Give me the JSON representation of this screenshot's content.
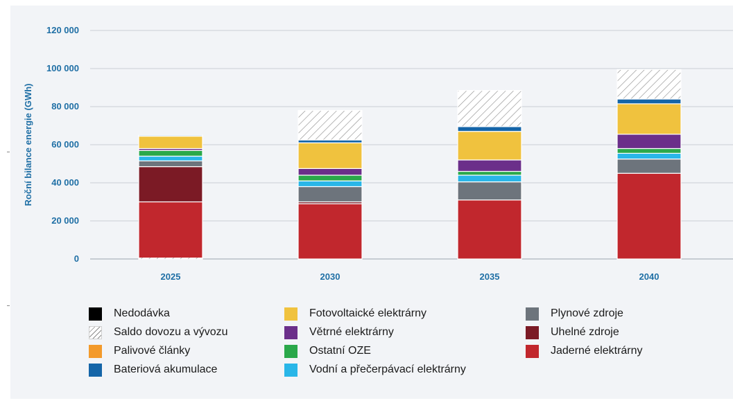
{
  "chart_data": {
    "type": "bar",
    "stacked": true,
    "title": "",
    "xlabel": "",
    "ylabel": "Roční bilance energie (GWh)",
    "ylim": [
      0,
      120000
    ],
    "yticks": [
      0,
      20000,
      40000,
      60000,
      80000,
      100000,
      120000
    ],
    "ytick_labels": [
      "0",
      "20 000",
      "40 000",
      "60 000",
      "80 000",
      "100 000",
      "120 000"
    ],
    "grid": true,
    "legend_position": "bottom",
    "categories": [
      "2025",
      "2030",
      "2035",
      "2040"
    ],
    "series": [
      {
        "name": "Jaderné elektrárny",
        "color": "#c1272d",
        "values": [
          30000,
          29000,
          31000,
          45000
        ]
      },
      {
        "name": "Uhelné zdroje",
        "color": "#7b1a25",
        "values": [
          18500,
          1000,
          0,
          0
        ]
      },
      {
        "name": "Plynové zdroje",
        "color": "#6d747c",
        "values": [
          3000,
          8000,
          9500,
          7500
        ]
      },
      {
        "name": "Vodní a přečerpávací elektrárny",
        "color": "#29b6e8",
        "values": [
          2500,
          3000,
          3500,
          3000
        ]
      },
      {
        "name": "Ostatní OZE",
        "color": "#2aa84a",
        "values": [
          3000,
          3000,
          2000,
          2500
        ]
      },
      {
        "name": "Palivové články",
        "color": "#f39a2b",
        "values": [
          0,
          0,
          0,
          0
        ]
      },
      {
        "name": "Větrné elektrárny",
        "color": "#6b2f8a",
        "values": [
          1000,
          3500,
          6000,
          7500
        ]
      },
      {
        "name": "Fotovoltaické elektrárny",
        "color": "#f0c23e",
        "values": [
          6500,
          13500,
          15000,
          16000
        ]
      },
      {
        "name": "Bateriová akumulace",
        "color": "#1565a8",
        "values": [
          500,
          1500,
          2500,
          2500
        ]
      },
      {
        "name": "Nedodávka",
        "color": "#000000",
        "values": [
          0,
          0,
          0,
          0
        ]
      },
      {
        "name": "Saldo dovozu a vývozu",
        "color": "hatch",
        "values": [
          0,
          15500,
          19000,
          15500
        ]
      }
    ]
  },
  "legend": {
    "columns": [
      [
        "Nedodávka",
        "Saldo dovozu a vývozu",
        "Palivové články",
        "Bateriová akumulace"
      ],
      [
        "Fotovoltaické elektrárny",
        "Větrné elektrárny",
        "Ostatní OZE",
        "Vodní a přečerpávací elektrárny"
      ],
      [
        "Plynové zdroje",
        "Uhelné zdroje",
        "Jaderné elektrárny"
      ]
    ]
  }
}
